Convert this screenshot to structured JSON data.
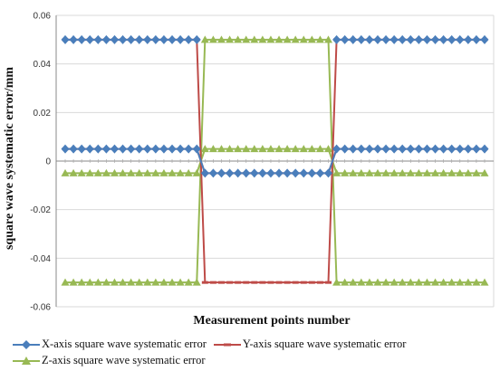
{
  "chart_data": {
    "type": "line",
    "title": "",
    "xlabel": "Measurement points number",
    "ylabel": "square wave systematic error/mm",
    "ylim": [
      -0.06,
      0.06
    ],
    "yticks": [
      "0.06",
      "0.04",
      "0.02",
      "0",
      "-0.02",
      "-0.04",
      "-0.06"
    ],
    "ytick_values": [
      0.06,
      0.04,
      0.02,
      0,
      -0.02,
      -0.04,
      -0.06
    ],
    "x": [
      1,
      2,
      3,
      4,
      5,
      6,
      7,
      8,
      9,
      10,
      11,
      12,
      13,
      14,
      15,
      16,
      17,
      18,
      19,
      20,
      21,
      22,
      23,
      24,
      25,
      26,
      27,
      28,
      29,
      30,
      31,
      32,
      33,
      34,
      35,
      36,
      37,
      38,
      39,
      40,
      41,
      42,
      43,
      44,
      45,
      46,
      47,
      48,
      49,
      50,
      51,
      52
    ],
    "grid": true,
    "legend_position": "bottom",
    "series": [
      {
        "name": "X-axis square wave systematic error",
        "color": "#4a7ebb",
        "marker": "diamond",
        "segments": [
          [
            0.005,
            0.005,
            0.005,
            0.005,
            0.005,
            0.005,
            0.005,
            0.005,
            0.005,
            0.005,
            0.005,
            0.005,
            0.005,
            0.005,
            0.005,
            0.005,
            0.005,
            -0.005,
            -0.005,
            -0.005,
            -0.005,
            -0.005,
            -0.005,
            -0.005,
            -0.005,
            -0.005,
            -0.005,
            -0.005,
            -0.005,
            -0.005,
            -0.005,
            -0.005,
            -0.005,
            0.005,
            0.005,
            0.005,
            0.005,
            0.005,
            0.005,
            0.005,
            0.005,
            0.005,
            0.005,
            0.005,
            0.005,
            0.005,
            0.005,
            0.005,
            0.005,
            0.005,
            0.005,
            0.005
          ],
          [
            0.05,
            0.05,
            0.05,
            0.05,
            0.05,
            0.05,
            0.05,
            0.05,
            0.05,
            0.05,
            0.05,
            0.05,
            0.05,
            0.05,
            0.05,
            0.05,
            0.05,
            null,
            null,
            null,
            null,
            null,
            null,
            null,
            null,
            null,
            null,
            null,
            null,
            null,
            null,
            null,
            null,
            0.05,
            0.05,
            0.05,
            0.05,
            0.05,
            0.05,
            0.05,
            0.05,
            0.05,
            0.05,
            0.05,
            0.05,
            0.05,
            0.05,
            0.05,
            0.05,
            0.05,
            0.05,
            0.05
          ]
        ]
      },
      {
        "name": "Y-axis square wave systematic error",
        "color": "#be4b48",
        "marker": "dash",
        "segments": [
          [
            0.05,
            0.05,
            0.05,
            0.05,
            0.05,
            0.05,
            0.05,
            0.05,
            0.05,
            0.05,
            0.05,
            0.05,
            0.05,
            0.05,
            0.05,
            0.05,
            0.05,
            -0.05,
            -0.05,
            -0.05,
            -0.05,
            -0.05,
            -0.05,
            -0.05,
            -0.05,
            -0.05,
            -0.05,
            -0.05,
            -0.05,
            -0.05,
            -0.05,
            -0.05,
            -0.05,
            0.05,
            0.05,
            0.05,
            0.05,
            0.05,
            0.05,
            0.05,
            0.05,
            0.05,
            0.05,
            0.05,
            0.05,
            0.05,
            0.05,
            0.05,
            0.05,
            0.05,
            0.05,
            0.05
          ],
          [
            0.005,
            0.005,
            0.005,
            0.005,
            0.005,
            0.005,
            0.005,
            0.005,
            0.005,
            0.005,
            0.005,
            0.005,
            0.005,
            0.005,
            0.005,
            0.005,
            0.005,
            -0.005,
            -0.005,
            -0.005,
            -0.005,
            -0.005,
            -0.005,
            -0.005,
            -0.005,
            -0.005,
            -0.005,
            -0.005,
            -0.005,
            -0.005,
            -0.005,
            -0.005,
            -0.005,
            0.005,
            0.005,
            0.005,
            0.005,
            0.005,
            0.005,
            0.005,
            0.005,
            0.005,
            0.005,
            0.005,
            0.005,
            0.005,
            0.005,
            0.005,
            0.005,
            0.005,
            0.005,
            0.005
          ]
        ]
      },
      {
        "name": "Z-axis square wave systematic error",
        "color": "#98b954",
        "marker": "triangle",
        "segments": [
          [
            -0.05,
            -0.05,
            -0.05,
            -0.05,
            -0.05,
            -0.05,
            -0.05,
            -0.05,
            -0.05,
            -0.05,
            -0.05,
            -0.05,
            -0.05,
            -0.05,
            -0.05,
            -0.05,
            -0.05,
            0.05,
            0.05,
            0.05,
            0.05,
            0.05,
            0.05,
            0.05,
            0.05,
            0.05,
            0.05,
            0.05,
            0.05,
            0.05,
            0.05,
            0.05,
            0.05,
            -0.05,
            -0.05,
            -0.05,
            -0.05,
            -0.05,
            -0.05,
            -0.05,
            -0.05,
            -0.05,
            -0.05,
            -0.05,
            -0.05,
            -0.05,
            -0.05,
            -0.05,
            -0.05,
            -0.05,
            -0.05,
            -0.05
          ],
          [
            -0.005,
            -0.005,
            -0.005,
            -0.005,
            -0.005,
            -0.005,
            -0.005,
            -0.005,
            -0.005,
            -0.005,
            -0.005,
            -0.005,
            -0.005,
            -0.005,
            -0.005,
            -0.005,
            -0.005,
            0.005,
            0.005,
            0.005,
            0.005,
            0.005,
            0.005,
            0.005,
            0.005,
            0.005,
            0.005,
            0.005,
            0.005,
            0.005,
            0.005,
            0.005,
            0.005,
            -0.005,
            -0.005,
            -0.005,
            -0.005,
            -0.005,
            -0.005,
            -0.005,
            -0.005,
            -0.005,
            -0.005,
            -0.005,
            -0.005,
            -0.005,
            -0.005,
            -0.005,
            -0.005,
            -0.005,
            -0.005,
            -0.005
          ]
        ]
      }
    ]
  }
}
